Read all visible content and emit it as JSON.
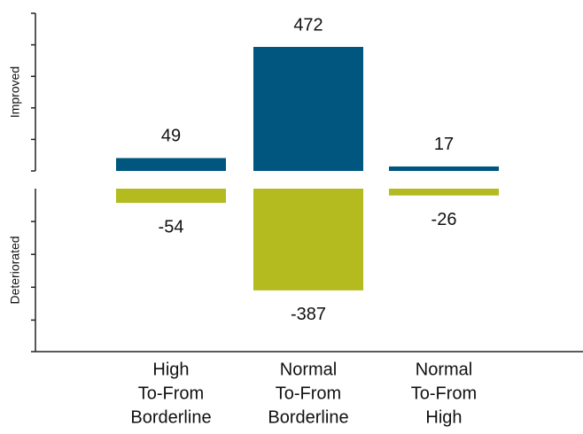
{
  "chart_data": [
    {
      "type": "bar",
      "y_label": "Improved",
      "values": [
        49,
        472,
        17
      ],
      "color": "#00567f",
      "ylim": [
        0,
        600
      ],
      "yticks": [
        0,
        120,
        240,
        360,
        480,
        600
      ]
    },
    {
      "type": "bar",
      "y_label": "Deteriorated",
      "categories": [
        [
          "High",
          "To-From",
          "Borderline"
        ],
        [
          "Normal",
          "To-From",
          "Borderline"
        ],
        [
          "Normal",
          "To-From",
          "High"
        ]
      ],
      "values": [
        -54,
        -387,
        -26
      ],
      "color": "#b3bb1f",
      "ylim": [
        -620,
        0
      ],
      "yticks": [
        -125,
        -250,
        -375,
        -500
      ]
    }
  ]
}
